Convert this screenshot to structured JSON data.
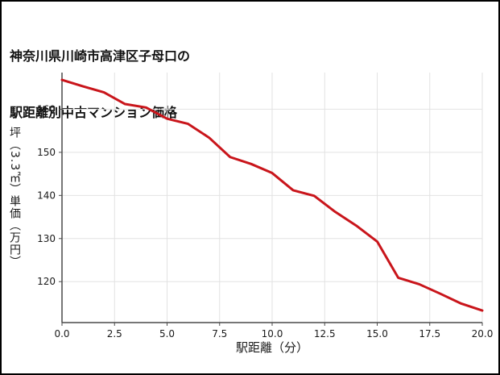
{
  "title": {
    "line1": "神奈川県川崎市高津区子母口の",
    "line2": "駅距離別中古マンション価格"
  },
  "chart_data": {
    "type": "line",
    "title": "神奈川県川崎市高津区子母口の駅距離別中古マンション価格",
    "xlabel": "駅距離（分）",
    "ylabel": "坪（3.3㎡）単価（万円）",
    "x": [
      0,
      1,
      2,
      3,
      4,
      5,
      6,
      7,
      8,
      9,
      10,
      11,
      12,
      13,
      14,
      15,
      16,
      17,
      18,
      19,
      20
    ],
    "y": [
      166.8,
      165.3,
      163.9,
      161.2,
      160.4,
      157.8,
      156.6,
      153.4,
      148.9,
      147.3,
      145.2,
      141.2,
      139.9,
      136.2,
      133.0,
      129.3,
      120.9,
      119.4,
      117.2,
      114.9,
      113.3
    ],
    "xlim": [
      0,
      20
    ],
    "ylim": [
      110.5,
      168.5
    ],
    "xticks": [
      0,
      2.5,
      5,
      7.5,
      10,
      12.5,
      15,
      17.5,
      20
    ],
    "xtick_labels": [
      "0.0",
      "2.5",
      "5.0",
      "7.5",
      "10.0",
      "12.5",
      "15.0",
      "17.5",
      "20.0"
    ],
    "yticks": [
      120,
      130,
      140,
      150,
      160
    ],
    "ytick_labels": [
      "120",
      "130",
      "140",
      "150",
      "160"
    ],
    "grid": true,
    "legend": false,
    "colors": {
      "line": "#c9151b",
      "grid": "#e2e2e2",
      "axis": "#4a4a4a",
      "tick_text": "#1a1a1a",
      "background": "#ffffff"
    }
  }
}
